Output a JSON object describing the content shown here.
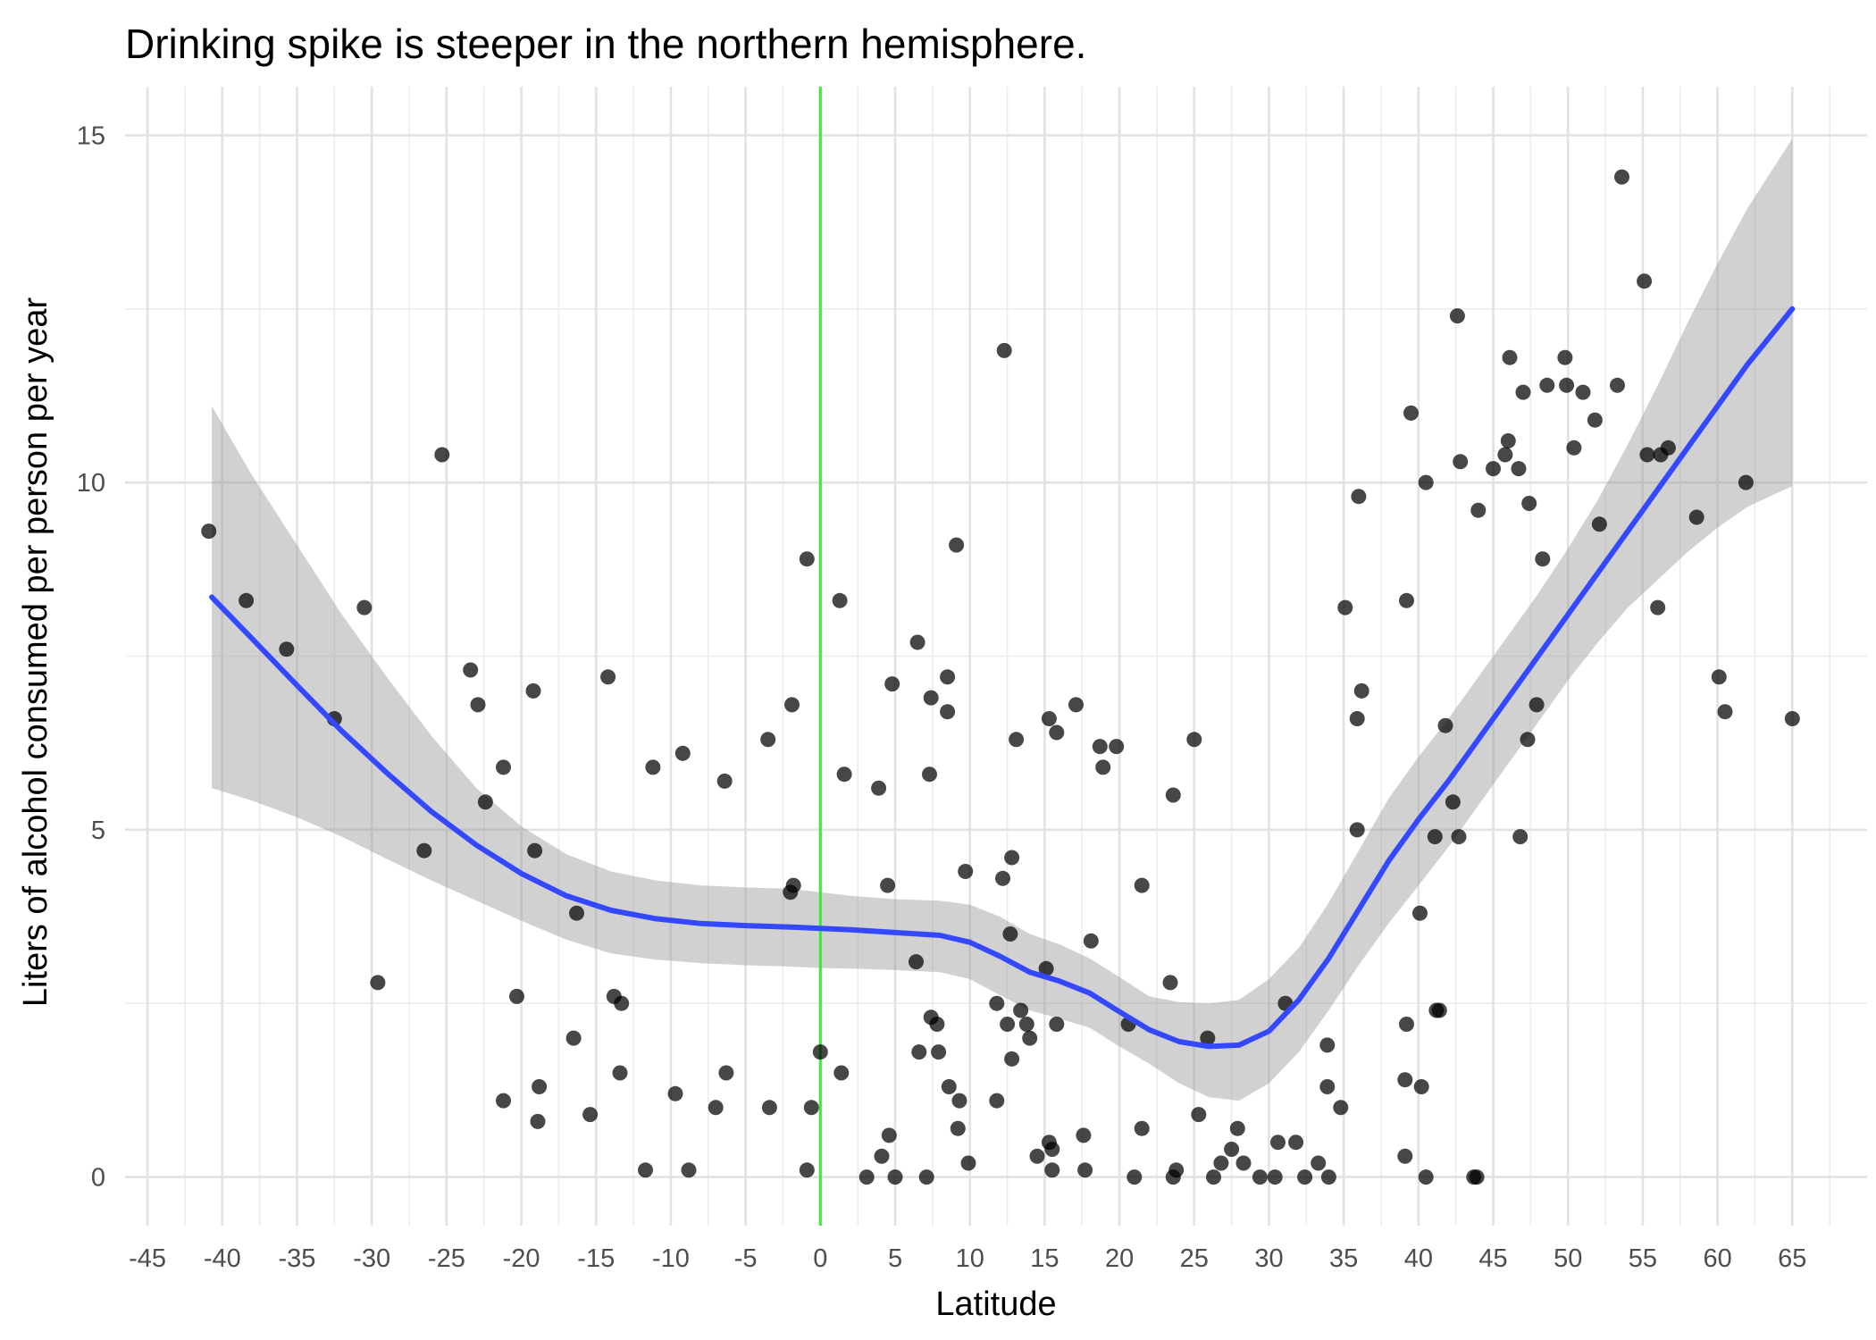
{
  "chart_data": {
    "type": "scatter",
    "title": "Drinking spike is steeper in the northern hemisphere.",
    "xlabel": "Latitude",
    "ylabel": "Liters of alcohol consumed per person per year",
    "xlim": [
      -46.5,
      70
    ],
    "ylim": [
      -0.7,
      15.7
    ],
    "x_ticks": [
      -45,
      -40,
      -35,
      -30,
      -25,
      -20,
      -15,
      -10,
      -5,
      0,
      5,
      10,
      15,
      20,
      25,
      30,
      35,
      40,
      45,
      50,
      55,
      60,
      65
    ],
    "x_tick_labels": [
      "-45",
      "-40",
      "-35",
      "-30",
      "-25",
      "-20",
      "-15",
      "-10",
      "-5",
      "0",
      "5",
      "10",
      "15",
      "20",
      "25",
      "30",
      "35",
      "40",
      "45",
      "50",
      "55",
      "60",
      "65"
    ],
    "y_ticks": [
      0,
      5,
      10,
      15
    ],
    "y_tick_labels": [
      "0",
      "5",
      "10",
      "15"
    ],
    "grid": true,
    "legend": "none",
    "reference_line": {
      "orientation": "vertical",
      "x": 0,
      "color": "#33ee33"
    },
    "points_color": "#000000",
    "smooth_color": "#3449ff",
    "ribbon_color": "#999999",
    "points": [
      [
        -40.9,
        9.3
      ],
      [
        -38.4,
        8.3
      ],
      [
        -35.7,
        7.6
      ],
      [
        -32.5,
        6.6
      ],
      [
        -30.5,
        8.2
      ],
      [
        -29.6,
        2.8
      ],
      [
        -26.5,
        4.7
      ],
      [
        -25.3,
        10.4
      ],
      [
        -23.4,
        7.3
      ],
      [
        -22.9,
        6.8
      ],
      [
        -22.4,
        5.4
      ],
      [
        -21.2,
        5.9
      ],
      [
        -21.2,
        1.1
      ],
      [
        -20.3,
        2.6
      ],
      [
        -19.2,
        7.0
      ],
      [
        -19.1,
        4.7
      ],
      [
        -18.8,
        1.3
      ],
      [
        -18.9,
        0.8
      ],
      [
        -16.5,
        2.0
      ],
      [
        -16.3,
        3.8
      ],
      [
        -15.4,
        0.9
      ],
      [
        -14.2,
        7.2
      ],
      [
        -13.8,
        2.6
      ],
      [
        -13.3,
        2.5
      ],
      [
        -13.4,
        1.5
      ],
      [
        -11.7,
        0.1
      ],
      [
        -11.2,
        5.9
      ],
      [
        -9.7,
        1.2
      ],
      [
        -9.2,
        6.1
      ],
      [
        -8.8,
        0.1
      ],
      [
        -7.0,
        1.0
      ],
      [
        -6.4,
        5.7
      ],
      [
        -6.3,
        1.5
      ],
      [
        -3.5,
        6.3
      ],
      [
        -3.4,
        1.0
      ],
      [
        -2.0,
        4.1
      ],
      [
        -1.9,
        6.8
      ],
      [
        -1.8,
        4.2
      ],
      [
        -0.9,
        8.9
      ],
      [
        -0.9,
        0.1
      ],
      [
        -0.6,
        1.0
      ],
      [
        0.0,
        1.8
      ],
      [
        1.3,
        8.3
      ],
      [
        1.4,
        1.5
      ],
      [
        1.6,
        5.8
      ],
      [
        3.1,
        0.0
      ],
      [
        3.9,
        5.6
      ],
      [
        4.1,
        0.3
      ],
      [
        4.6,
        0.6
      ],
      [
        4.5,
        4.2
      ],
      [
        4.8,
        7.1
      ],
      [
        5.0,
        0.0
      ],
      [
        6.4,
        3.1
      ],
      [
        6.5,
        7.7
      ],
      [
        6.6,
        1.8
      ],
      [
        7.1,
        0.0
      ],
      [
        7.3,
        5.8
      ],
      [
        7.4,
        6.9
      ],
      [
        7.4,
        2.3
      ],
      [
        7.8,
        2.2
      ],
      [
        7.9,
        1.8
      ],
      [
        8.5,
        7.2
      ],
      [
        8.5,
        6.7
      ],
      [
        8.6,
        1.3
      ],
      [
        9.1,
        9.1
      ],
      [
        9.2,
        0.7
      ],
      [
        9.3,
        1.1
      ],
      [
        9.7,
        4.4
      ],
      [
        9.9,
        0.2
      ],
      [
        11.8,
        2.5
      ],
      [
        11.8,
        1.1
      ],
      [
        12.2,
        4.3
      ],
      [
        12.3,
        11.9
      ],
      [
        12.5,
        2.2
      ],
      [
        12.7,
        3.5
      ],
      [
        12.8,
        4.6
      ],
      [
        12.8,
        1.7
      ],
      [
        13.1,
        6.3
      ],
      [
        13.4,
        2.4
      ],
      [
        13.8,
        2.2
      ],
      [
        14.0,
        2.0
      ],
      [
        14.5,
        0.3
      ],
      [
        15.1,
        3.0
      ],
      [
        15.3,
        6.6
      ],
      [
        15.3,
        0.5
      ],
      [
        15.5,
        0.4
      ],
      [
        15.5,
        0.1
      ],
      [
        15.8,
        6.4
      ],
      [
        15.8,
        2.2
      ],
      [
        17.1,
        6.8
      ],
      [
        17.6,
        0.6
      ],
      [
        17.7,
        0.1
      ],
      [
        18.1,
        3.4
      ],
      [
        18.7,
        6.2
      ],
      [
        18.9,
        5.9
      ],
      [
        19.8,
        6.2
      ],
      [
        20.6,
        2.2
      ],
      [
        21.0,
        0.0
      ],
      [
        21.5,
        4.2
      ],
      [
        21.5,
        0.7
      ],
      [
        23.4,
        2.8
      ],
      [
        23.6,
        5.5
      ],
      [
        23.6,
        0.0
      ],
      [
        23.8,
        0.1
      ],
      [
        25.0,
        6.3
      ],
      [
        25.3,
        0.9
      ],
      [
        25.9,
        2.0
      ],
      [
        26.3,
        0.0
      ],
      [
        26.8,
        0.2
      ],
      [
        27.5,
        0.4
      ],
      [
        27.9,
        0.7
      ],
      [
        28.3,
        0.2
      ],
      [
        29.4,
        0.0
      ],
      [
        30.4,
        0.0
      ],
      [
        30.6,
        0.5
      ],
      [
        31.1,
        2.5
      ],
      [
        31.8,
        0.5
      ],
      [
        32.4,
        0.0
      ],
      [
        33.3,
        0.2
      ],
      [
        33.9,
        1.9
      ],
      [
        33.9,
        1.3
      ],
      [
        34.0,
        0.0
      ],
      [
        34.8,
        1.0
      ],
      [
        35.1,
        8.2
      ],
      [
        35.9,
        5.0
      ],
      [
        35.9,
        6.6
      ],
      [
        36.0,
        9.8
      ],
      [
        36.2,
        7.0
      ],
      [
        39.1,
        0.3
      ],
      [
        39.1,
        1.4
      ],
      [
        39.2,
        2.2
      ],
      [
        39.2,
        8.3
      ],
      [
        39.5,
        11.0
      ],
      [
        40.1,
        3.8
      ],
      [
        40.2,
        1.3
      ],
      [
        40.5,
        0.0
      ],
      [
        40.5,
        10.0
      ],
      [
        41.1,
        4.9
      ],
      [
        41.2,
        2.4
      ],
      [
        41.4,
        2.4
      ],
      [
        41.8,
        6.5
      ],
      [
        42.3,
        5.4
      ],
      [
        42.6,
        12.4
      ],
      [
        42.7,
        4.9
      ],
      [
        42.8,
        10.3
      ],
      [
        43.7,
        0.0
      ],
      [
        43.9,
        0.0
      ],
      [
        44.0,
        9.6
      ],
      [
        45.0,
        10.2
      ],
      [
        45.8,
        10.4
      ],
      [
        46.0,
        10.6
      ],
      [
        46.1,
        11.8
      ],
      [
        46.7,
        10.2
      ],
      [
        46.8,
        4.9
      ],
      [
        47.0,
        11.3
      ],
      [
        47.3,
        6.3
      ],
      [
        47.4,
        9.7
      ],
      [
        47.9,
        6.8
      ],
      [
        48.3,
        8.9
      ],
      [
        48.6,
        11.4
      ],
      [
        49.8,
        11.8
      ],
      [
        49.9,
        11.4
      ],
      [
        50.4,
        10.5
      ],
      [
        51.0,
        11.3
      ],
      [
        51.8,
        10.9
      ],
      [
        52.1,
        9.4
      ],
      [
        53.3,
        11.4
      ],
      [
        53.6,
        14.4
      ],
      [
        55.1,
        12.9
      ],
      [
        55.3,
        10.4
      ],
      [
        56.0,
        8.2
      ],
      [
        56.2,
        10.4
      ],
      [
        56.7,
        10.5
      ],
      [
        58.6,
        9.5
      ],
      [
        60.1,
        7.2
      ],
      [
        60.5,
        6.7
      ],
      [
        61.9,
        10.0
      ],
      [
        65.0,
        6.6
      ]
    ],
    "smooth_line": [
      [
        -40.7,
        8.35
      ],
      [
        -38,
        7.75
      ],
      [
        -35,
        7.08
      ],
      [
        -32,
        6.42
      ],
      [
        -29,
        5.82
      ],
      [
        -26,
        5.26
      ],
      [
        -23,
        4.78
      ],
      [
        -20,
        4.37
      ],
      [
        -17,
        4.05
      ],
      [
        -14,
        3.84
      ],
      [
        -11,
        3.72
      ],
      [
        -8,
        3.65
      ],
      [
        -5,
        3.62
      ],
      [
        -2,
        3.6
      ],
      [
        0,
        3.58
      ],
      [
        2,
        3.56
      ],
      [
        5,
        3.52
      ],
      [
        8,
        3.48
      ],
      [
        10,
        3.38
      ],
      [
        12,
        3.18
      ],
      [
        14,
        2.95
      ],
      [
        16,
        2.82
      ],
      [
        18,
        2.65
      ],
      [
        20,
        2.38
      ],
      [
        22,
        2.12
      ],
      [
        24,
        1.95
      ],
      [
        26,
        1.88
      ],
      [
        28,
        1.9
      ],
      [
        30,
        2.1
      ],
      [
        32,
        2.55
      ],
      [
        34,
        3.15
      ],
      [
        36,
        3.85
      ],
      [
        38,
        4.55
      ],
      [
        40,
        5.15
      ],
      [
        42,
        5.7
      ],
      [
        44,
        6.3
      ],
      [
        46,
        6.9
      ],
      [
        48,
        7.5
      ],
      [
        50,
        8.1
      ],
      [
        52,
        8.7
      ],
      [
        54,
        9.3
      ],
      [
        56,
        9.9
      ],
      [
        58,
        10.5
      ],
      [
        60,
        11.1
      ],
      [
        62,
        11.7
      ],
      [
        65,
        12.5
      ]
    ],
    "ribbon_upper": [
      [
        -40.7,
        11.1
      ],
      [
        -38,
        10.1
      ],
      [
        -35,
        9.1
      ],
      [
        -32,
        8.1
      ],
      [
        -29,
        7.2
      ],
      [
        -26,
        6.35
      ],
      [
        -23,
        5.6
      ],
      [
        -20,
        5.05
      ],
      [
        -17,
        4.65
      ],
      [
        -14,
        4.4
      ],
      [
        -11,
        4.27
      ],
      [
        -8,
        4.2
      ],
      [
        -5,
        4.17
      ],
      [
        -2,
        4.15
      ],
      [
        0,
        4.1
      ],
      [
        2,
        4.05
      ],
      [
        5,
        4.0
      ],
      [
        8,
        3.98
      ],
      [
        10,
        3.92
      ],
      [
        12,
        3.75
      ],
      [
        14,
        3.5
      ],
      [
        16,
        3.35
      ],
      [
        18,
        3.15
      ],
      [
        20,
        2.88
      ],
      [
        22,
        2.6
      ],
      [
        24,
        2.52
      ],
      [
        26,
        2.5
      ],
      [
        28,
        2.55
      ],
      [
        30,
        2.85
      ],
      [
        32,
        3.3
      ],
      [
        34,
        3.95
      ],
      [
        36,
        4.7
      ],
      [
        38,
        5.45
      ],
      [
        40,
        6.05
      ],
      [
        42,
        6.6
      ],
      [
        44,
        7.2
      ],
      [
        46,
        7.8
      ],
      [
        48,
        8.4
      ],
      [
        50,
        9.05
      ],
      [
        52,
        9.75
      ],
      [
        54,
        10.55
      ],
      [
        56,
        11.4
      ],
      [
        58,
        12.3
      ],
      [
        60,
        13.15
      ],
      [
        62,
        13.95
      ],
      [
        65,
        14.95
      ]
    ],
    "ribbon_lower": [
      [
        -40.7,
        5.6
      ],
      [
        -38,
        5.42
      ],
      [
        -35,
        5.18
      ],
      [
        -32,
        4.9
      ],
      [
        -29,
        4.58
      ],
      [
        -26,
        4.27
      ],
      [
        -23,
        3.98
      ],
      [
        -20,
        3.69
      ],
      [
        -17,
        3.42
      ],
      [
        -14,
        3.22
      ],
      [
        -11,
        3.13
      ],
      [
        -8,
        3.08
      ],
      [
        -5,
        3.05
      ],
      [
        -2,
        3.03
      ],
      [
        0,
        3.01
      ],
      [
        2,
        3.0
      ],
      [
        5,
        2.98
      ],
      [
        8,
        2.95
      ],
      [
        10,
        2.85
      ],
      [
        12,
        2.62
      ],
      [
        14,
        2.4
      ],
      [
        16,
        2.28
      ],
      [
        18,
        2.15
      ],
      [
        20,
        1.88
      ],
      [
        22,
        1.63
      ],
      [
        24,
        1.35
      ],
      [
        26,
        1.15
      ],
      [
        28,
        1.1
      ],
      [
        30,
        1.35
      ],
      [
        32,
        1.8
      ],
      [
        34,
        2.4
      ],
      [
        36,
        3.05
      ],
      [
        38,
        3.65
      ],
      [
        40,
        4.2
      ],
      [
        42,
        4.75
      ],
      [
        44,
        5.35
      ],
      [
        46,
        5.95
      ],
      [
        48,
        6.55
      ],
      [
        50,
        7.15
      ],
      [
        52,
        7.7
      ],
      [
        54,
        8.2
      ],
      [
        56,
        8.6
      ],
      [
        58,
        9.0
      ],
      [
        60,
        9.35
      ],
      [
        62,
        9.65
      ],
      [
        65,
        9.95
      ]
    ]
  }
}
